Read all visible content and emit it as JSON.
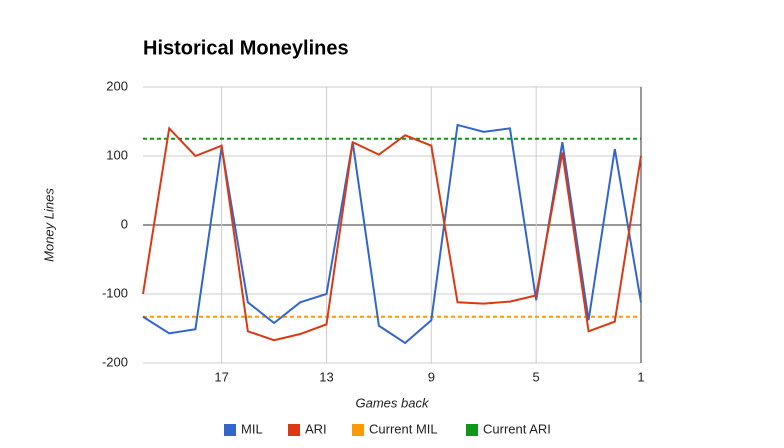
{
  "chart_data": {
    "type": "line",
    "title": "Historical Moneylines",
    "x_label": "Games back",
    "y_label": "Money Lines",
    "x": [
      20,
      19,
      18,
      17,
      16,
      15,
      14,
      13,
      12,
      11,
      10,
      9,
      8,
      7,
      6,
      5,
      4,
      3,
      2,
      1
    ],
    "series": [
      {
        "name": "MIL",
        "color": "#3366cc",
        "values": [
          -133,
          -157,
          -151,
          113,
          -112,
          -142,
          -112,
          -100,
          120,
          -146,
          -171,
          -138,
          145,
          135,
          140,
          -109,
          120,
          -138,
          110,
          -112
        ]
      },
      {
        "name": "ARI",
        "color": "#dc3912",
        "values": [
          -100,
          140,
          100,
          115,
          -154,
          -167,
          -158,
          -144,
          120,
          102,
          130,
          115,
          -112,
          -114,
          -111,
          -102,
          105,
          -154,
          -140,
          100
        ]
      }
    ],
    "reference_lines": [
      {
        "name": "Current MIL",
        "color": "#ff9900",
        "value": -133
      },
      {
        "name": "Current ARI",
        "color": "#109618",
        "value": 125
      }
    ],
    "xlim": [
      20,
      1
    ],
    "xticks": [
      17,
      13,
      9,
      5,
      1
    ],
    "ylim": [
      -200,
      200
    ],
    "yticks": [
      -200,
      -100,
      0,
      100,
      200
    ],
    "grid": true,
    "legend": "bottom"
  }
}
